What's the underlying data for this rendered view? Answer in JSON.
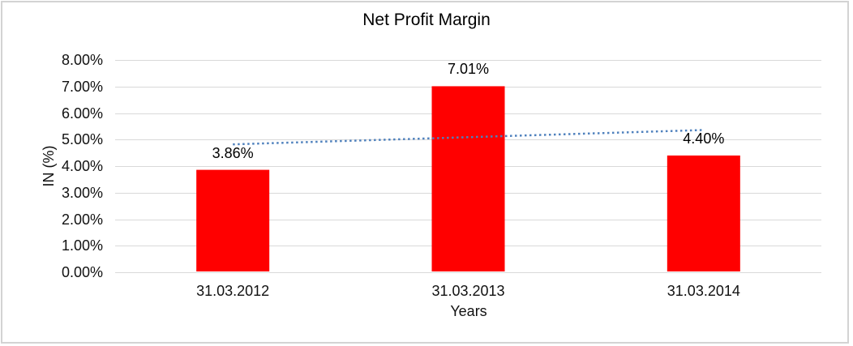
{
  "chart_data": {
    "type": "bar",
    "title": "Net Profit Margin",
    "xlabel": "Years",
    "ylabel": "IN (%)",
    "categories": [
      "31.03.2012",
      "31.03.2013",
      "31.03.2014"
    ],
    "values": [
      3.86,
      7.01,
      4.4
    ],
    "data_labels": [
      "3.86%",
      "7.01%",
      "4.40%"
    ],
    "ylim": [
      0,
      8
    ],
    "yticks": [
      0,
      1,
      2,
      3,
      4,
      5,
      6,
      7,
      8
    ],
    "ytick_labels": [
      "0.00%",
      "1.00%",
      "2.00%",
      "3.00%",
      "4.00%",
      "5.00%",
      "6.00%",
      "7.00%",
      "8.00%"
    ],
    "grid": true,
    "legend": "none",
    "trendline": {
      "type": "linear",
      "style": "dotted",
      "start_value": 4.82,
      "end_value": 5.36
    },
    "colors": {
      "bar": "#FF0000",
      "gridline": "#D9D9D9",
      "trendline": "#4F81BD",
      "text": "#111111",
      "frame_border": "#D3D3D3",
      "background": "#FFFFFF"
    }
  }
}
